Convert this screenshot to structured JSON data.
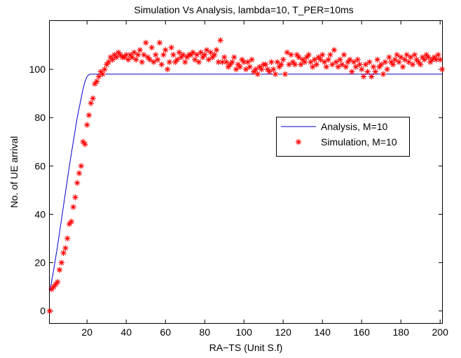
{
  "chart_data": {
    "type": "line",
    "title": "Simulation Vs Analysis, lambda=10, T_PER=10ms",
    "xlabel": "RA−TS (Unit S.f)",
    "ylabel": "No. of UE arrival",
    "xlim": [
      1,
      201
    ],
    "ylim": [
      -5,
      120
    ],
    "xticks": [
      20,
      40,
      60,
      80,
      100,
      120,
      140,
      160,
      180,
      200
    ],
    "yticks": [
      0,
      20,
      40,
      60,
      80,
      100
    ],
    "grid": false,
    "legend_position": "center-right",
    "series": [
      {
        "name": "Analysis, M=10",
        "style": "line",
        "color": "#0000cc",
        "x": [
          1,
          3,
          5,
          7,
          9,
          11,
          13,
          15,
          17,
          18,
          19,
          20,
          21,
          22,
          23,
          25,
          30,
          40,
          60,
          100,
          150,
          201
        ],
        "y": [
          8,
          17,
          27,
          38,
          49,
          60,
          70,
          80,
          88,
          92,
          95,
          97,
          97.8,
          98,
          98,
          98,
          98,
          98,
          98,
          98,
          98,
          98
        ]
      },
      {
        "name": "Simulation, M=10",
        "style": "markers",
        "marker": "asterisk",
        "color": "#ff0000",
        "x": [
          1,
          2,
          3,
          4,
          5,
          6,
          7,
          8,
          9,
          10,
          11,
          12,
          13,
          14,
          15,
          16,
          17,
          18,
          19,
          20,
          21,
          22,
          23,
          24,
          25,
          26,
          27,
          28,
          29,
          30,
          31,
          32,
          33,
          34,
          35,
          36,
          37,
          38,
          39,
          40,
          41,
          42,
          43,
          44,
          45,
          46,
          47,
          48,
          49,
          50,
          51,
          52,
          53,
          54,
          55,
          56,
          57,
          58,
          59,
          60,
          61,
          62,
          63,
          64,
          65,
          66,
          67,
          68,
          69,
          70,
          71,
          72,
          73,
          74,
          75,
          76,
          77,
          78,
          79,
          80,
          81,
          82,
          83,
          84,
          85,
          86,
          87,
          88,
          89,
          90,
          91,
          92,
          93,
          94,
          95,
          96,
          97,
          98,
          99,
          100,
          101,
          102,
          103,
          104,
          105,
          106,
          107,
          108,
          109,
          110,
          111,
          112,
          113,
          114,
          115,
          116,
          117,
          118,
          119,
          120,
          121,
          122,
          123,
          124,
          125,
          126,
          127,
          128,
          129,
          130,
          131,
          132,
          133,
          134,
          135,
          136,
          137,
          138,
          139,
          140,
          141,
          142,
          143,
          144,
          145,
          146,
          147,
          148,
          149,
          150,
          151,
          152,
          153,
          154,
          155,
          156,
          157,
          158,
          159,
          160,
          161,
          162,
          163,
          164,
          165,
          166,
          167,
          168,
          169,
          170,
          171,
          172,
          173,
          174,
          175,
          176,
          177,
          178,
          179,
          180,
          181,
          182,
          183,
          184,
          185,
          186,
          187,
          188,
          189,
          190,
          191,
          192,
          193,
          194,
          195,
          196,
          197,
          198,
          199,
          200,
          201
        ],
        "y": [
          0,
          9,
          10,
          11,
          12,
          17,
          20,
          24,
          26,
          30,
          36,
          37,
          43,
          47,
          53,
          57,
          60,
          70,
          69,
          77,
          81,
          86,
          88,
          94,
          95,
          97,
          99,
          98,
          100,
          102,
          103,
          105,
          104,
          106,
          105,
          107,
          106,
          105,
          105,
          106,
          104,
          106,
          105,
          107,
          104,
          106,
          108,
          103,
          106,
          111,
          105,
          104,
          109,
          103,
          106,
          104,
          111,
          102,
          106,
          108,
          100,
          103,
          109,
          106,
          103,
          104,
          107,
          105,
          106,
          103,
          105,
          106,
          106,
          107,
          104,
          106,
          103,
          107,
          105,
          106,
          108,
          104,
          107,
          105,
          106,
          108,
          103,
          112,
          103,
          105,
          103,
          101,
          102,
          103,
          105,
          100,
          102,
          101,
          104,
          103,
          100,
          103,
          101,
          104,
          99,
          100,
          98,
          101,
          100,
          102,
          102,
          100,
          99,
          103,
          100,
          98,
          103,
          101,
          102,
          104,
          98,
          107,
          102,
          106,
          103,
          102,
          106,
          105,
          102,
          104,
          103,
          105,
          106,
          103,
          101,
          104,
          102,
          105,
          104,
          106,
          103,
          101,
          104,
          106,
          102,
          108,
          103,
          101,
          104,
          102,
          106,
          101,
          103,
          104,
          99,
          103,
          101,
          104,
          102,
          100,
          97,
          102,
          99,
          103,
          97,
          101,
          99,
          104,
          101,
          102,
          98,
          103,
          100,
          105,
          103,
          102,
          104,
          106,
          103,
          105,
          101,
          104,
          106,
          103,
          105,
          102,
          106,
          104,
          103,
          102,
          105,
          104,
          106,
          105,
          103,
          104,
          105,
          104,
          106,
          104,
          100
        ]
      }
    ]
  }
}
